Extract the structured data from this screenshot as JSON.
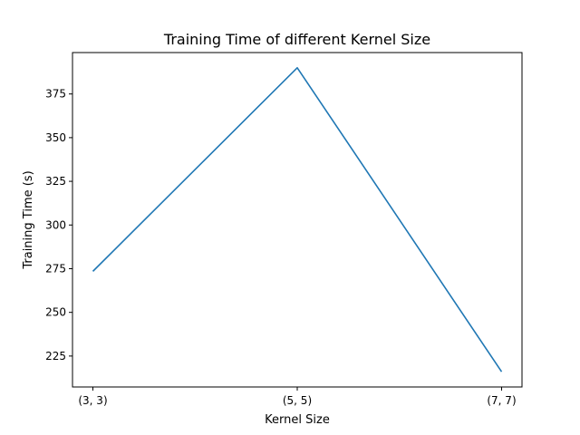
{
  "chart_data": {
    "type": "line",
    "title": "Training Time of different Kernel Size",
    "xlabel": "Kernel Size",
    "ylabel": "Training Time (s)",
    "categories": [
      "(3, 3)",
      "(5, 5)",
      "(7, 7)"
    ],
    "series": [
      {
        "values": [
          273.5,
          390.0,
          216.0
        ],
        "color": "#1f77b4"
      }
    ],
    "ylim": [
      207.3,
      398.7
    ],
    "yticks": [
      225,
      250,
      275,
      300,
      325,
      350,
      375
    ],
    "grid": false,
    "legend": "none"
  }
}
